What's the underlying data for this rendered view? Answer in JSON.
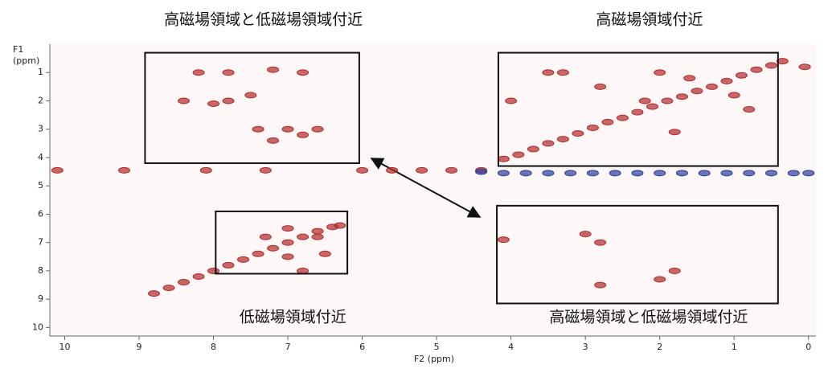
{
  "chart_data": {
    "type": "scatter",
    "xlabel": "F2 (ppm)",
    "ylabel": [
      "F1",
      "(ppm)"
    ],
    "xlim": [
      10.2,
      -0.1
    ],
    "ylim": [
      0,
      10.3
    ],
    "xticks": [
      10,
      9,
      8,
      7,
      6,
      5,
      4,
      3,
      2,
      1,
      0
    ],
    "yticks": [
      1,
      2,
      3,
      4,
      5,
      6,
      7,
      8,
      9,
      10
    ],
    "series": [
      {
        "color": "#b02a2a",
        "x": [
          8.8,
          8.6,
          8.4,
          8.2,
          8.0,
          7.8,
          7.6,
          7.4,
          7.2,
          7.0,
          6.8,
          6.6,
          6.4,
          6.3,
          4.1,
          3.9,
          3.7,
          3.5,
          3.3,
          3.1,
          2.9,
          2.7,
          2.5,
          2.3,
          2.1,
          1.9,
          1.7,
          1.5,
          1.3,
          1.1,
          0.9,
          0.7,
          0.5,
          0.35
        ],
        "values": [
          8.8,
          8.6,
          8.4,
          8.2,
          8.0,
          7.8,
          7.6,
          7.4,
          7.2,
          7.0,
          6.8,
          6.6,
          6.45,
          6.4,
          4.05,
          3.9,
          3.7,
          3.5,
          3.35,
          3.15,
          2.95,
          2.75,
          2.6,
          2.4,
          2.2,
          2.0,
          1.85,
          1.65,
          1.5,
          1.3,
          1.1,
          0.9,
          0.75,
          0.6
        ]
      },
      {
        "color": "#b02a2a",
        "x": [
          8.2,
          7.8,
          7.2,
          6.8,
          8.4,
          8.0,
          7.8,
          7.5,
          7.0,
          6.8,
          7.2,
          7.4,
          6.6,
          7.0,
          7.3,
          6.5,
          7.0,
          6.8,
          6.6,
          3.5,
          3.3,
          2.0,
          1.6,
          2.8,
          2.2,
          4.0,
          1.8,
          1.0,
          0.8,
          3.0,
          2.8,
          2.0,
          1.8,
          2.8,
          4.1,
          0.05
        ],
        "values": [
          1.0,
          1.0,
          0.9,
          1.0,
          2.0,
          2.1,
          2.0,
          1.8,
          3.0,
          3.2,
          3.4,
          3.0,
          3.0,
          6.5,
          6.8,
          7.4,
          7.5,
          8.0,
          6.8,
          1.0,
          1.0,
          1.0,
          1.2,
          1.5,
          2.0,
          2.0,
          3.1,
          1.8,
          2.3,
          6.7,
          7.0,
          8.3,
          8.0,
          8.5,
          6.9,
          0.8
        ]
      },
      {
        "color": "#b02a2a",
        "x": [
          10.1,
          9.2,
          8.1,
          7.3,
          6.0,
          5.6,
          5.2,
          4.8,
          4.4
        ],
        "values": [
          4.45,
          4.45,
          4.45,
          4.45,
          4.45,
          4.45,
          4.45,
          4.45,
          4.45
        ]
      },
      {
        "color": "#2a3f9a",
        "x": [
          4.4,
          4.1,
          3.8,
          3.5,
          3.2,
          2.9,
          2.6,
          2.3,
          2.0,
          1.7,
          1.4,
          1.1,
          0.8,
          0.5,
          0.2,
          0.0
        ],
        "values": [
          4.5,
          4.55,
          4.55,
          4.55,
          4.55,
          4.55,
          4.55,
          4.55,
          4.55,
          4.55,
          4.55,
          4.55,
          4.55,
          4.55,
          4.55,
          4.55
        ]
      }
    ],
    "regions": [
      {
        "label": "高磁場領域と低磁場領域付近",
        "xrange": [
          8.92,
          6.04
        ],
        "yrange": [
          0.3,
          4.2
        ]
      },
      {
        "label": "高磁場領域付近",
        "xrange": [
          4.17,
          0.41
        ],
        "yrange": [
          0.3,
          4.3
        ]
      },
      {
        "label": "低磁場領域付近",
        "xrange": [
          7.97,
          6.2
        ],
        "yrange": [
          5.9,
          8.1
        ]
      },
      {
        "label": "高磁場領域と低磁場領域付近",
        "xrange": [
          4.19,
          0.41
        ],
        "yrange": [
          5.7,
          9.15
        ]
      }
    ]
  }
}
